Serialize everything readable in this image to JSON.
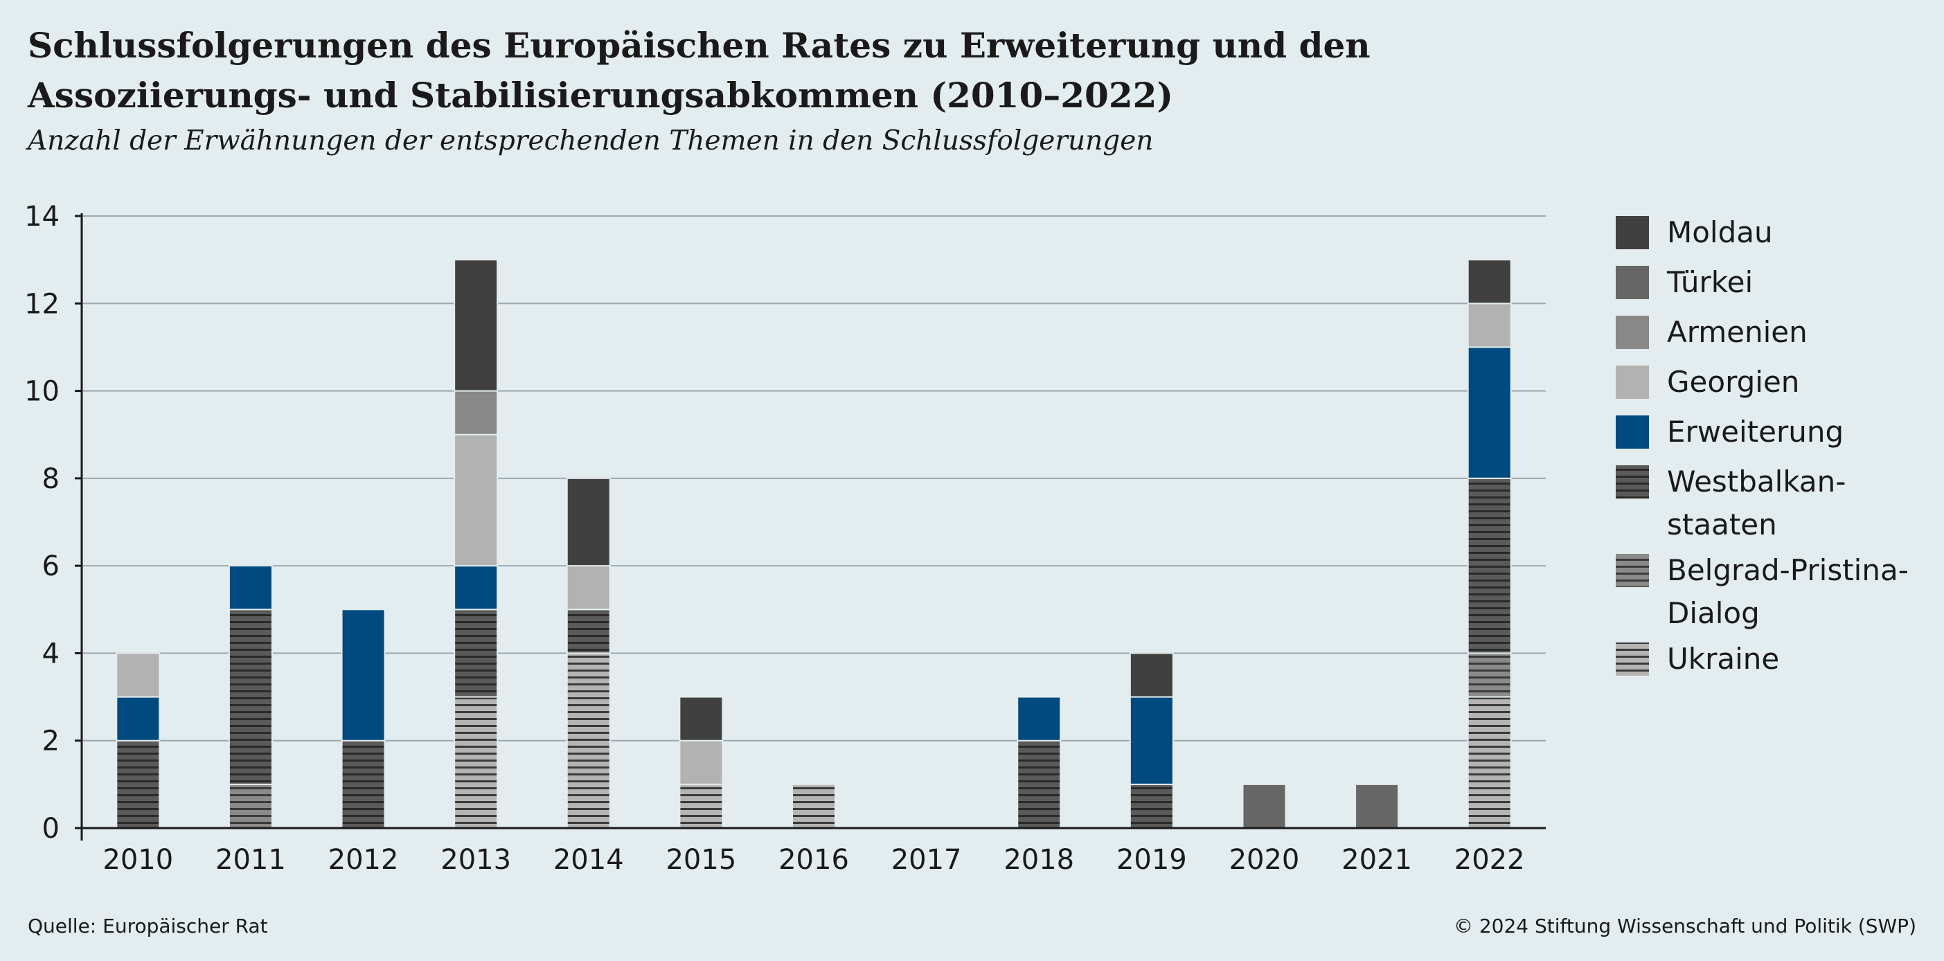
{
  "title": "Schlussfolgerungen des Europäischen Rates zu Erweiterung und den Assoziierungs- und Stabilisierungsabkommen (2010–2022)",
  "subtitle": "Anzahl der Erwähnungen der entsprechenden Themen in den Schlussfolgerungen",
  "source": "Quelle: Europäischer Rat",
  "copyright": "© 2024 Stiftung Wissenschaft und Politik (SWP)",
  "chart_data": {
    "type": "bar",
    "stacked": true,
    "categories": [
      "2010",
      "2011",
      "2012",
      "2013",
      "2014",
      "2015",
      "2016",
      "2017",
      "2018",
      "2019",
      "2020",
      "2021",
      "2022"
    ],
    "ylim": [
      0,
      14
    ],
    "yticks": [
      0,
      2,
      4,
      6,
      8,
      10,
      12,
      14
    ],
    "grid": true,
    "legend_position": "right",
    "series": [
      {
        "name": "Ukraine",
        "color": "#b4b4b4",
        "pattern": "stripes",
        "values": [
          0,
          0,
          0,
          3,
          4,
          1,
          1,
          0,
          0,
          0,
          0,
          0,
          3
        ]
      },
      {
        "name": "Belgrad-Pristina-Dialog",
        "color": "#8a8a8a",
        "pattern": "stripes",
        "values": [
          0,
          1,
          0,
          0,
          0,
          0,
          0,
          0,
          0,
          0,
          0,
          0,
          1
        ]
      },
      {
        "name": "Westbalkanstaaten",
        "color": "#5a5a5a",
        "pattern": "stripes",
        "values": [
          2,
          4,
          2,
          2,
          1,
          0,
          0,
          0,
          2,
          1,
          0,
          0,
          4
        ]
      },
      {
        "name": "Erweiterung",
        "color": "#004a7f",
        "pattern": "solid",
        "values": [
          1,
          1,
          3,
          1,
          0,
          0,
          0,
          0,
          1,
          2,
          0,
          0,
          3
        ]
      },
      {
        "name": "Georgien",
        "color": "#b2b2b2",
        "pattern": "solid",
        "values": [
          1,
          0,
          0,
          3,
          1,
          1,
          0,
          0,
          0,
          0,
          0,
          0,
          1
        ]
      },
      {
        "name": "Armenien",
        "color": "#888888",
        "pattern": "solid",
        "values": [
          0,
          0,
          0,
          1,
          0,
          0,
          0,
          0,
          0,
          0,
          0,
          0,
          0
        ]
      },
      {
        "name": "Türkei",
        "color": "#666666",
        "pattern": "solid",
        "values": [
          0,
          0,
          0,
          0,
          0,
          0,
          0,
          0,
          0,
          0,
          1,
          1,
          0
        ]
      },
      {
        "name": "Moldau",
        "color": "#404040",
        "pattern": "solid",
        "values": [
          0,
          0,
          0,
          3,
          2,
          1,
          0,
          0,
          0,
          1,
          0,
          0,
          1
        ]
      }
    ],
    "legend": [
      {
        "series": "Moldau",
        "lines": [
          "Moldau"
        ]
      },
      {
        "series": "Türkei",
        "lines": [
          "Türkei"
        ]
      },
      {
        "series": "Armenien",
        "lines": [
          "Armenien"
        ]
      },
      {
        "series": "Georgien",
        "lines": [
          "Georgien"
        ]
      },
      {
        "series": "Erweiterung",
        "lines": [
          "Erweiterung"
        ]
      },
      {
        "series": "Westbalkanstaaten",
        "lines": [
          "Westbalkan-",
          "staaten"
        ]
      },
      {
        "series": "Belgrad-Pristina-Dialog",
        "lines": [
          "Belgrad-Pristina-",
          "Dialog"
        ]
      },
      {
        "series": "Ukraine",
        "lines": [
          "Ukraine"
        ]
      }
    ]
  }
}
